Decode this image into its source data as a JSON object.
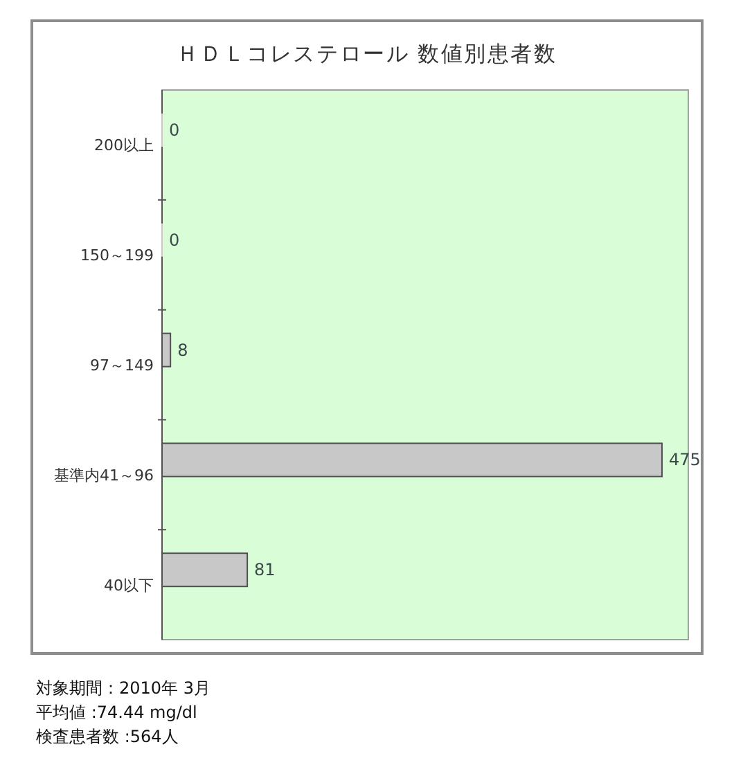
{
  "chart_data": {
    "type": "bar",
    "orientation": "horizontal",
    "title": "ＨＤＬコレステロール 数値別患者数",
    "categories": [
      "200以上",
      "150～199",
      "97～149",
      "基準内41～96",
      "40以下"
    ],
    "values": [
      0,
      0,
      8,
      475,
      81
    ],
    "color": "#c8c8c8",
    "data_labels": true,
    "annotations": [
      "対象期間：2010年 3月",
      "平均値 :74.44 mg/dl",
      "検査患者数 :564人"
    ]
  }
}
